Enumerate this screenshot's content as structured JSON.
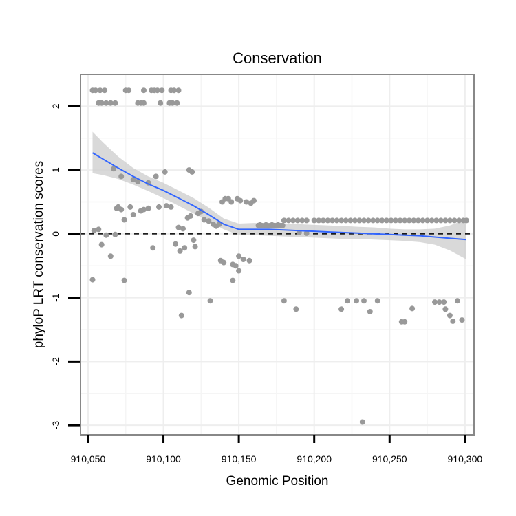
{
  "chart_data": {
    "type": "scatter",
    "title": "Conservation",
    "xlabel": "Genomic Position",
    "ylabel": "phyloP LRT conservation scores",
    "xlim": [
      910045,
      910306
    ],
    "ylim": [
      -3.15,
      2.5
    ],
    "x_ticks": [
      910050,
      910100,
      910150,
      910200,
      910250,
      910300
    ],
    "x_tick_labels": [
      "910,050",
      "910,100",
      "910,150",
      "910,200",
      "910,250",
      "910,300"
    ],
    "y_ticks": [
      -3,
      -2,
      -1,
      0,
      1,
      2
    ],
    "y_tick_labels": [
      "-3",
      "-2",
      "-1",
      "0",
      "1",
      "2"
    ],
    "reference_line": {
      "y": 0,
      "style": "dashed"
    },
    "colors": {
      "points": "#999999",
      "smooth_line": "#3366ff",
      "ribbon": "#cccccc",
      "panel_border": "#888888",
      "grid": "#eeeeee"
    },
    "points": [
      [
        910053,
        2.25
      ],
      [
        910055,
        2.25
      ],
      [
        910058,
        2.25
      ],
      [
        910061,
        2.25
      ],
      [
        910075,
        2.25
      ],
      [
        910077,
        2.25
      ],
      [
        910087,
        2.25
      ],
      [
        910092,
        2.25
      ],
      [
        910094,
        2.25
      ],
      [
        910096,
        2.25
      ],
      [
        910099,
        2.25
      ],
      [
        910105,
        2.25
      ],
      [
        910107,
        2.25
      ],
      [
        910110,
        2.25
      ],
      [
        910057,
        2.05
      ],
      [
        910059,
        2.05
      ],
      [
        910062,
        2.05
      ],
      [
        910065,
        2.05
      ],
      [
        910068,
        2.05
      ],
      [
        910083,
        2.05
      ],
      [
        910085,
        2.05
      ],
      [
        910087,
        2.05
      ],
      [
        910098,
        2.05
      ],
      [
        910104,
        2.05
      ],
      [
        910106,
        2.05
      ],
      [
        910109,
        2.05
      ],
      [
        910067,
        1.02
      ],
      [
        910072,
        0.9
      ],
      [
        910080,
        0.85
      ],
      [
        910083,
        0.82
      ],
      [
        910090,
        0.8
      ],
      [
        910095,
        0.9
      ],
      [
        910101,
        0.97
      ],
      [
        910117,
        1.0
      ],
      [
        910119,
        0.97
      ],
      [
        910054,
        0.05
      ],
      [
        910057,
        0.07
      ],
      [
        910059,
        -0.17
      ],
      [
        910062,
        -0.02
      ],
      [
        910065,
        -0.35
      ],
      [
        910068,
        -0.01
      ],
      [
        910069,
        0.4
      ],
      [
        910070,
        0.42
      ],
      [
        910072,
        0.38
      ],
      [
        910074,
        0.22
      ],
      [
        910078,
        0.42
      ],
      [
        910080,
        0.3
      ],
      [
        910085,
        0.36
      ],
      [
        910087,
        0.38
      ],
      [
        910090,
        0.4
      ],
      [
        910093,
        -0.22
      ],
      [
        910097,
        0.42
      ],
      [
        910102,
        0.44
      ],
      [
        910105,
        0.42
      ],
      [
        910108,
        -0.16
      ],
      [
        910110,
        0.1
      ],
      [
        910111,
        -0.27
      ],
      [
        910113,
        0.08
      ],
      [
        910114,
        -0.22
      ],
      [
        910116,
        0.25
      ],
      [
        910118,
        0.28
      ],
      [
        910120,
        -0.1
      ],
      [
        910121,
        -0.2
      ],
      [
        910123,
        0.32
      ],
      [
        910125,
        0.35
      ],
      [
        910127,
        0.22
      ],
      [
        910130,
        0.2
      ],
      [
        910133,
        0.15
      ],
      [
        910135,
        0.12
      ],
      [
        910137,
        0.15
      ],
      [
        910139,
        0.5
      ],
      [
        910141,
        0.55
      ],
      [
        910143,
        0.55
      ],
      [
        910145,
        0.5
      ],
      [
        910138,
        -0.42
      ],
      [
        910140,
        -0.45
      ],
      [
        910146,
        -0.48
      ],
      [
        910148,
        -0.5
      ],
      [
        910150,
        -0.35
      ],
      [
        910153,
        -0.4
      ],
      [
        910157,
        -0.42
      ],
      [
        910149,
        0.55
      ],
      [
        910151,
        0.52
      ],
      [
        910155,
        0.5
      ],
      [
        910158,
        0.48
      ],
      [
        910160,
        0.52
      ],
      [
        910150,
        -0.58
      ],
      [
        910146,
        -0.73
      ],
      [
        910053,
        -0.72
      ],
      [
        910074,
        -0.73
      ],
      [
        910112,
        -1.28
      ],
      [
        910117,
        -0.92
      ],
      [
        910131,
        -1.05
      ],
      [
        910180,
        -1.05
      ],
      [
        910188,
        -1.18
      ],
      [
        910218,
        -1.18
      ],
      [
        910222,
        -1.05
      ],
      [
        910228,
        -1.05
      ],
      [
        910233,
        -1.05
      ],
      [
        910237,
        -1.22
      ],
      [
        910242,
        -1.05
      ],
      [
        910258,
        -1.38
      ],
      [
        910260,
        -1.38
      ],
      [
        910265,
        -1.17
      ],
      [
        910280,
        -1.07
      ],
      [
        910283,
        -1.07
      ],
      [
        910286,
        -1.07
      ],
      [
        910287,
        -1.18
      ],
      [
        910290,
        -1.28
      ],
      [
        910292,
        -1.37
      ],
      [
        910295,
        -1.05
      ],
      [
        910298,
        -1.35
      ],
      [
        910232,
        -2.95
      ],
      [
        910163,
        0.13
      ],
      [
        910165,
        0.13
      ],
      [
        910167,
        0.13
      ],
      [
        910169,
        0.13
      ],
      [
        910171,
        0.13
      ],
      [
        910173,
        0.13
      ],
      [
        910175,
        0.13
      ],
      [
        910177,
        0.13
      ],
      [
        910179,
        0.13
      ],
      [
        910164,
        0.14
      ],
      [
        910168,
        0.14
      ],
      [
        910172,
        0.14
      ],
      [
        910176,
        0.14
      ],
      [
        910180,
        0.21
      ],
      [
        910183,
        0.21
      ],
      [
        910186,
        0.21
      ],
      [
        910189,
        0.21
      ],
      [
        910192,
        0.21
      ],
      [
        910195,
        0.21
      ],
      [
        910200,
        0.21
      ],
      [
        910203,
        0.21
      ],
      [
        910206,
        0.21
      ],
      [
        910209,
        0.21
      ],
      [
        910212,
        0.21
      ],
      [
        910215,
        0.21
      ],
      [
        910218,
        0.21
      ],
      [
        910221,
        0.21
      ],
      [
        910224,
        0.21
      ],
      [
        910227,
        0.21
      ],
      [
        910230,
        0.21
      ],
      [
        910233,
        0.21
      ],
      [
        910236,
        0.21
      ],
      [
        910239,
        0.21
      ],
      [
        910242,
        0.21
      ],
      [
        910245,
        0.21
      ],
      [
        910248,
        0.21
      ],
      [
        910251,
        0.21
      ],
      [
        910254,
        0.21
      ],
      [
        910257,
        0.21
      ],
      [
        910260,
        0.21
      ],
      [
        910263,
        0.21
      ],
      [
        910266,
        0.21
      ],
      [
        910269,
        0.21
      ],
      [
        910272,
        0.21
      ],
      [
        910275,
        0.21
      ],
      [
        910278,
        0.21
      ],
      [
        910281,
        0.21
      ],
      [
        910284,
        0.21
      ],
      [
        910287,
        0.21
      ],
      [
        910290,
        0.21
      ],
      [
        910293,
        0.21
      ],
      [
        910296,
        0.21
      ],
      [
        910299,
        0.21
      ],
      [
        910301,
        0.21
      ],
      [
        910190,
        0.02
      ],
      [
        910195,
        0.01
      ]
    ],
    "smooth": {
      "x": [
        910053,
        910060,
        910070,
        910080,
        910090,
        910100,
        910110,
        910120,
        910130,
        910140,
        910150,
        910160,
        910170,
        910180,
        910190,
        910200,
        910210,
        910220,
        910230,
        910240,
        910250,
        910260,
        910270,
        910280,
        910290,
        910301
      ],
      "y": [
        1.27,
        1.17,
        1.03,
        0.9,
        0.78,
        0.68,
        0.56,
        0.44,
        0.3,
        0.15,
        0.07,
        0.07,
        0.07,
        0.06,
        0.05,
        0.04,
        0.03,
        0.02,
        0.01,
        0.0,
        -0.01,
        -0.02,
        -0.03,
        -0.05,
        -0.07,
        -0.09
      ],
      "lower": [
        0.95,
        0.92,
        0.86,
        0.77,
        0.67,
        0.56,
        0.44,
        0.32,
        0.2,
        0.07,
        -0.02,
        -0.02,
        -0.03,
        -0.04,
        -0.05,
        -0.06,
        -0.07,
        -0.08,
        -0.08,
        -0.09,
        -0.1,
        -0.11,
        -0.13,
        -0.17,
        -0.26,
        -0.4
      ],
      "upper": [
        1.6,
        1.43,
        1.21,
        1.03,
        0.9,
        0.8,
        0.68,
        0.56,
        0.41,
        0.24,
        0.16,
        0.17,
        0.17,
        0.16,
        0.15,
        0.14,
        0.13,
        0.12,
        0.11,
        0.1,
        0.08,
        0.07,
        0.07,
        0.08,
        0.13,
        0.23
      ]
    }
  }
}
